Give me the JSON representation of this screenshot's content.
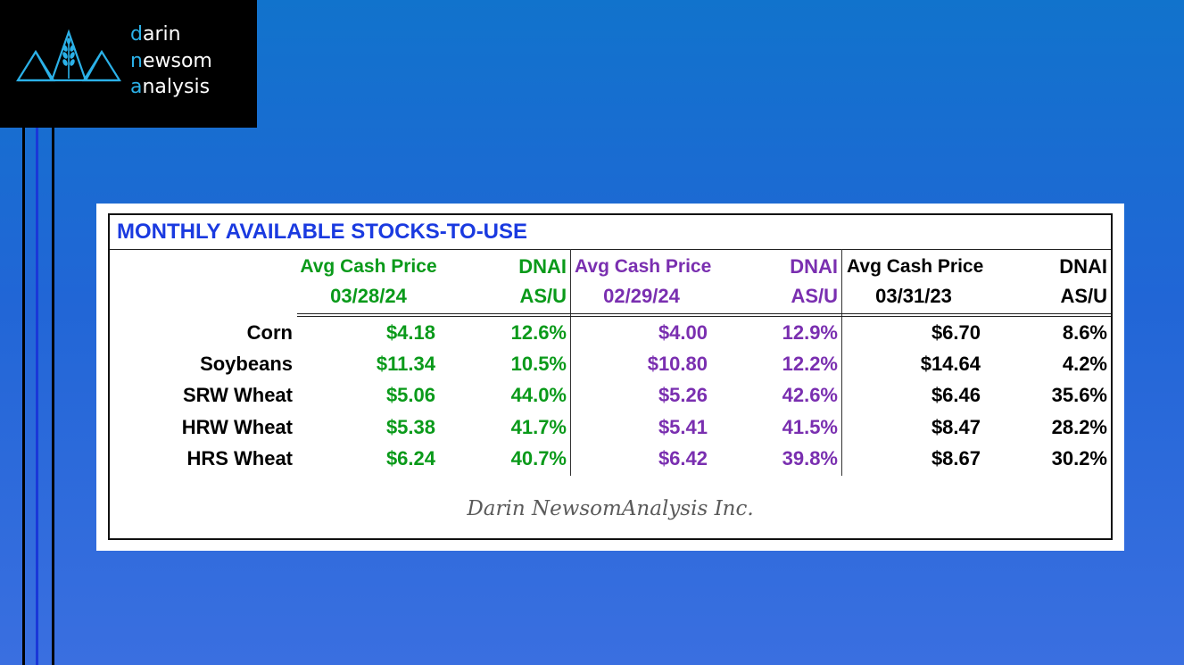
{
  "logo": {
    "line1": {
      "first": "d",
      "rest": "arin"
    },
    "line2": {
      "first": "n",
      "mid": "e",
      "last": "wsom"
    },
    "line3": {
      "first": "a",
      "rest": "nalysis"
    }
  },
  "table": {
    "title": "MONTHLY AVAILABLE STOCKS-TO-USE",
    "groups": [
      {
        "price_header": "Avg Cash Price",
        "date": "03/28/24",
        "asu_header_1": "DNAI",
        "asu_header_2": "AS/U",
        "color": "#0a9a1a"
      },
      {
        "price_header": "Avg Cash Price",
        "date": "02/29/24",
        "asu_header_1": "DNAI",
        "asu_header_2": "AS/U",
        "color": "#7a2fb0"
      },
      {
        "price_header": "Avg Cash Price",
        "date": "03/31/23",
        "asu_header_1": "DNAI",
        "asu_header_2": "AS/U",
        "color": "#000000"
      }
    ],
    "rows": [
      {
        "label": "Corn",
        "values": [
          "$4.18",
          "12.6%",
          "$4.00",
          "12.9%",
          "$6.70",
          "8.6%"
        ]
      },
      {
        "label": "Soybeans",
        "values": [
          "$11.34",
          "10.5%",
          "$10.80",
          "12.2%",
          "$14.64",
          "4.2%"
        ]
      },
      {
        "label": "SRW Wheat",
        "values": [
          "$5.06",
          "44.0%",
          "$5.26",
          "42.6%",
          "$6.46",
          "35.6%"
        ]
      },
      {
        "label": "HRW Wheat",
        "values": [
          "$5.38",
          "41.7%",
          "$5.41",
          "41.5%",
          "$8.47",
          "28.2%"
        ]
      },
      {
        "label": "HRS Wheat",
        "values": [
          "$6.24",
          "40.7%",
          "$6.42",
          "39.8%",
          "$8.67",
          "30.2%"
        ]
      }
    ],
    "footer": "Darin NewsomAnalysis Inc."
  }
}
